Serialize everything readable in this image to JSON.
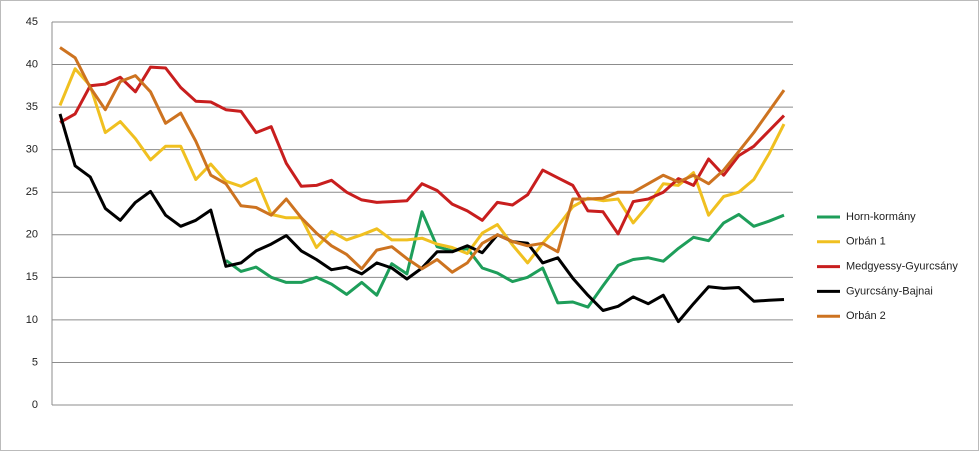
{
  "chart_data": {
    "type": "line",
    "categories": [
      null,
      null,
      null,
      null,
      null,
      null,
      null,
      null,
      null,
      null,
      null,
      null,
      null,
      null,
      null,
      null,
      null,
      null,
      null,
      null,
      null,
      null,
      null,
      null,
      null,
      null,
      null,
      null,
      null,
      null,
      null,
      null,
      null,
      null,
      null,
      null,
      null,
      null,
      null,
      null,
      null,
      null,
      null,
      null,
      null,
      null,
      null,
      null,
      null
    ],
    "series": [
      {
        "name": "Horn-kormány",
        "color": "#1e9e5a",
        "values": [
          null,
          null,
          null,
          null,
          null,
          null,
          null,
          null,
          null,
          null,
          null,
          17,
          15.7,
          16.2,
          15,
          14.4,
          14.4,
          15,
          14.2,
          13,
          14.4,
          12.9,
          16.6,
          15.4,
          22.7,
          18.6,
          18.1,
          18.4,
          16.1,
          15.5,
          14.5,
          15,
          16.1,
          12,
          12.1,
          11.5,
          14,
          16.4,
          17.1,
          17.3,
          16.9,
          18.4,
          19.7,
          19.3,
          21.4,
          22.4,
          21,
          21.6,
          22.3
        ]
      },
      {
        "name": "Orbán 1",
        "color": "#f0c020",
        "values": [
          35.2,
          39.5,
          37.5,
          32,
          33.3,
          31.3,
          28.8,
          30.4,
          30.4,
          26.5,
          28.3,
          26.3,
          25.7,
          26.6,
          22.4,
          22,
          22,
          18.5,
          20.4,
          19.4,
          20,
          20.7,
          19.4,
          19.4,
          19.6,
          18.9,
          18.5,
          17.8,
          20.2,
          21.2,
          18.8,
          16.7,
          19,
          21,
          23.3,
          24.3,
          24,
          24.2,
          21.4,
          23.5,
          26,
          25.8,
          27.3,
          22.3,
          24.5,
          25,
          26.5,
          29.5,
          33
        ]
      },
      {
        "name": "Medgyessy-Gyurcsány",
        "color": "#c81e1e",
        "values": [
          33.2,
          34.2,
          37.5,
          37.7,
          38.5,
          36.8,
          39.7,
          39.6,
          37.3,
          35.7,
          35.6,
          34.7,
          34.5,
          32,
          32.7,
          28.4,
          25.7,
          25.8,
          26.4,
          25,
          24.1,
          23.8,
          23.9,
          24,
          26,
          25.2,
          23.6,
          22.8,
          21.7,
          23.8,
          23.5,
          24.7,
          27.6,
          26.7,
          25.8,
          22.8,
          22.7,
          20.1,
          23.9,
          24.2,
          25,
          26.6,
          25.8,
          28.9,
          27,
          29.3,
          30.4,
          32.2,
          34
        ]
      },
      {
        "name": "Gyurcsány-Bajnai",
        "color": "#000000",
        "values": [
          34.2,
          28.1,
          26.8,
          23.1,
          21.7,
          23.8,
          25.1,
          22.3,
          21,
          21.7,
          22.9,
          16.3,
          16.7,
          18.1,
          18.9,
          19.9,
          18.1,
          17.1,
          15.9,
          16.2,
          15.4,
          16.7,
          16.1,
          14.8,
          16.1,
          18,
          18,
          18.7,
          17.9,
          20,
          19.2,
          19,
          16.7,
          17.3,
          14.9,
          12.9,
          11.1,
          11.6,
          12.7,
          11.9,
          12.9,
          9.8,
          11.9,
          13.9,
          13.7,
          13.8,
          12.2,
          12.3,
          12.4
        ]
      },
      {
        "name": "Orbán 2",
        "color": "#cd7320",
        "values": [
          42,
          40.8,
          37.3,
          34.7,
          38,
          38.7,
          36.8,
          33.1,
          34.3,
          31,
          27,
          26,
          23.4,
          23.2,
          22.3,
          24.2,
          22,
          20.2,
          18.7,
          17.7,
          16,
          18.2,
          18.6,
          17.2,
          16,
          17.1,
          15.6,
          16.7,
          19,
          20,
          19.2,
          18.7,
          19,
          18,
          24.2,
          24.2,
          24.3,
          25,
          25,
          26,
          27,
          26.2,
          27,
          26,
          27.6,
          29.8,
          32,
          34.5,
          37
        ]
      }
    ],
    "ylim": [
      0,
      45
    ],
    "yticks": [
      0,
      5,
      10,
      15,
      20,
      25,
      30,
      35,
      40,
      45
    ],
    "grid": true,
    "legend": "right"
  }
}
